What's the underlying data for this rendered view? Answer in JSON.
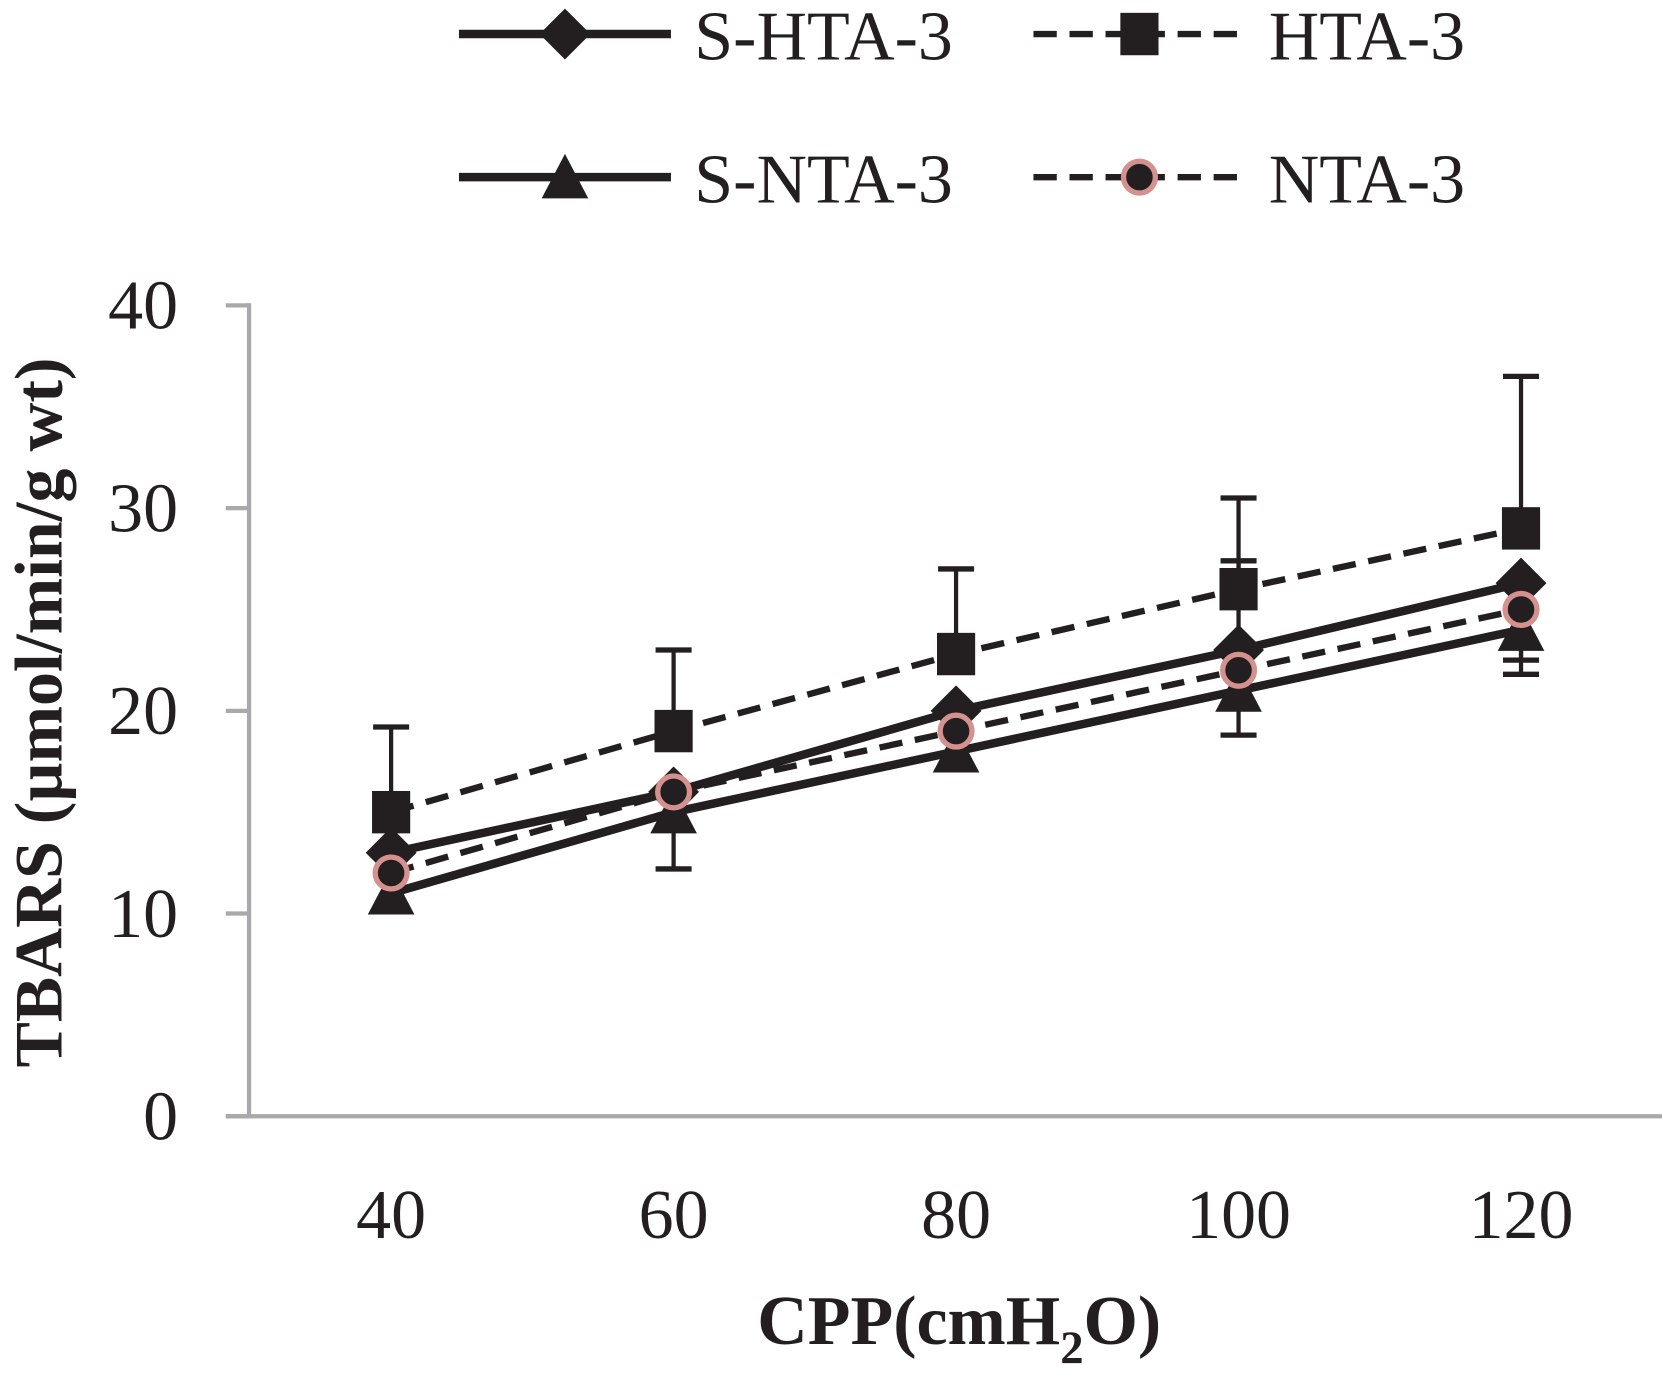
{
  "chart_data": {
    "type": "line",
    "title": "",
    "xlabel": "CPP(cmH2O)",
    "xlabel_parts": {
      "main": "CPP(cmH",
      "sub": "2",
      "end": "O)"
    },
    "ylabel": "TBARS (µmol/min/g wt)",
    "x": [
      40,
      60,
      80,
      100,
      120
    ],
    "x_ticks": [
      "40",
      "60",
      "80",
      "100",
      "120"
    ],
    "y_ticks": [
      "0",
      "10",
      "20",
      "30",
      "40"
    ],
    "ylim": [
      0,
      40
    ],
    "grid": false,
    "legend_placement": "top",
    "series": [
      {
        "name": "S-HTA-3",
        "marker": "diamond",
        "line": "solid",
        "color": "#231f20",
        "values": [
          13,
          16,
          20,
          23,
          26.3
        ],
        "error_upper": [
          null,
          null,
          null,
          27.4,
          null
        ],
        "error_lower": [
          null,
          null,
          null,
          null,
          null
        ]
      },
      {
        "name": "HTA-3",
        "marker": "square",
        "line": "dashed",
        "color": "#231f20",
        "values": [
          15,
          19,
          22.8,
          26,
          29
        ],
        "error_upper": [
          19.2,
          23,
          27,
          30.5,
          36.5
        ],
        "error_lower": [
          null,
          null,
          null,
          null,
          null
        ]
      },
      {
        "name": "S-NTA-3",
        "marker": "triangle",
        "line": "solid",
        "color": "#231f20",
        "values": [
          11,
          15,
          18,
          21,
          24
        ],
        "error_upper": [
          null,
          null,
          null,
          null,
          null
        ],
        "error_lower": [
          null,
          12.2,
          null,
          18.8,
          21.8
        ]
      },
      {
        "name": "NTA-3",
        "marker": "circle",
        "line": "dashed",
        "color": "#231f20",
        "marker_edge": "#d4918e",
        "values": [
          12,
          16,
          19,
          22,
          25
        ],
        "error_upper": [
          null,
          null,
          null,
          null,
          null
        ],
        "error_lower": [
          null,
          null,
          null,
          null,
          22.5
        ]
      }
    ]
  }
}
